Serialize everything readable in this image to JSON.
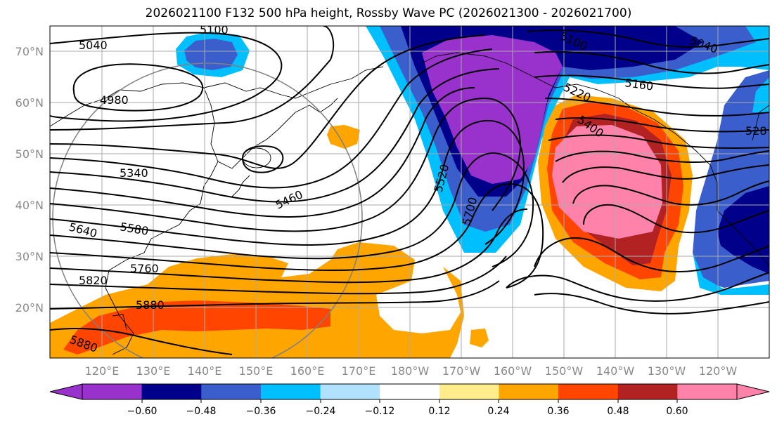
{
  "title": "2026021100 F132 500 hPa height, Rossby Wave PC (2026021300 - 2026021700)",
  "map": {
    "lat_labels": [
      "70°N",
      "60°N",
      "50°N",
      "40°N",
      "30°N",
      "20°N"
    ],
    "lon_labels": [
      "120°E",
      "130°E",
      "140°E",
      "150°E",
      "160°E",
      "170°E",
      "180°W",
      "170°W",
      "160°W",
      "150°W",
      "140°W",
      "130°W",
      "120°W"
    ],
    "contour_labels": [
      "5100",
      "5040",
      "4980",
      "5340",
      "5460",
      "5640",
      "5580",
      "5760",
      "5820",
      "5880",
      "5880",
      "5520",
      "5700",
      "5100",
      "5040",
      "5160",
      "5220",
      "5400",
      "528"
    ]
  },
  "colorbar": {
    "colors": [
      "#9932cc",
      "#00008b",
      "#3a5fcd",
      "#00bfff",
      "#b0e2ff",
      "#ffffff",
      "#ffec8b",
      "#ffa500",
      "#ff4500",
      "#b22222",
      "#ff82ab"
    ],
    "tick_labels": [
      "−0.60",
      "−0.48",
      "−0.36",
      "−0.24",
      "−0.12",
      "0.12",
      "0.24",
      "0.36",
      "0.48",
      "0.60"
    ]
  }
}
